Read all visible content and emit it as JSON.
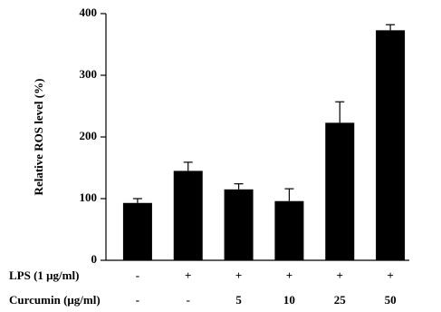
{
  "chart_data": {
    "type": "bar",
    "y_label": "Relative ROS level (%)",
    "values": [
      93,
      145,
      115,
      96,
      223,
      373
    ],
    "errors": [
      7,
      14,
      9,
      20,
      34,
      9
    ],
    "color": "#000000",
    "ylim": [
      0,
      400
    ],
    "yticks": [
      0,
      100,
      200,
      300,
      400
    ],
    "treatments": [
      {
        "label": "LPS (1 μg/ml)",
        "values": [
          "-",
          "+",
          "+",
          "+",
          "+",
          "+"
        ]
      },
      {
        "label": "Curcumin (μg/ml)",
        "values": [
          "-",
          "-",
          "5",
          "10",
          "25",
          "50"
        ]
      }
    ]
  }
}
